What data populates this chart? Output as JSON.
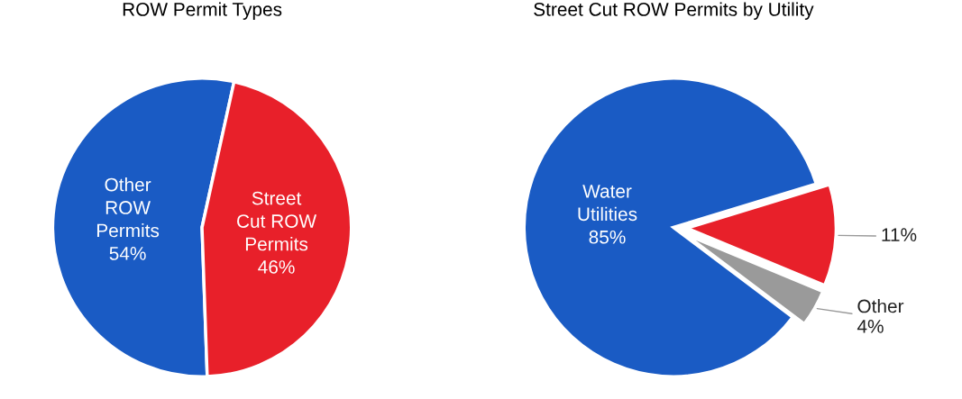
{
  "chart_data": [
    {
      "type": "pie",
      "title": "ROW Permit Types",
      "categories": [
        "Other\nROW\nPermits",
        "Street\nCut ROW\nPermits"
      ],
      "values": [
        54,
        46
      ],
      "colors": [
        "#1a5bc4",
        "#e8202a"
      ],
      "value_labels": [
        "54%",
        "46%"
      ]
    },
    {
      "type": "pie",
      "title": "Street Cut ROW Permits by Utility",
      "categories": [
        "Water\nUtilities",
        null,
        "Other"
      ],
      "values": [
        85,
        11,
        4
      ],
      "colors": [
        "#1a5bc4",
        "#e8202a",
        "#9a9a9a"
      ],
      "value_labels": [
        "85%",
        "11%",
        "4%"
      ]
    }
  ]
}
